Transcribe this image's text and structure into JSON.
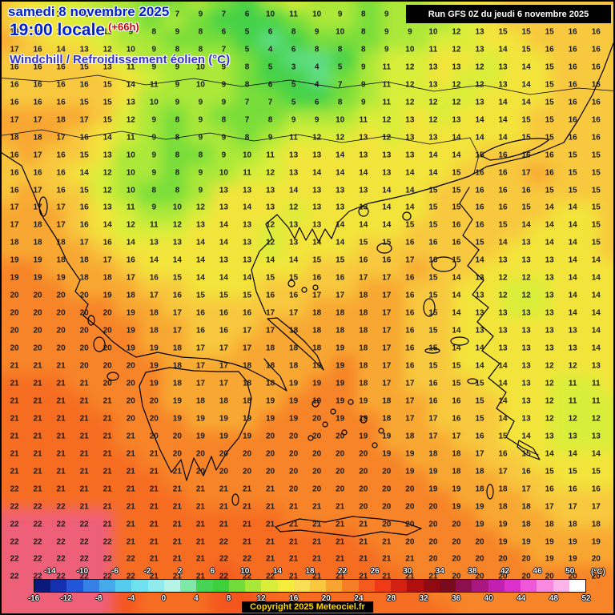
{
  "header": {
    "date": "samedi 8 novembre 2025",
    "time": "19:00 locale",
    "offset": "(+66h)",
    "title": "Windchill / Refroidissement éolien (°C)",
    "run_info": "Run GFS 0Z du jeudi 6 novembre 2025"
  },
  "footer": {
    "copyright": "Copyright 2025 Meteociel.fr"
  },
  "legend": {
    "unit": "(°C)",
    "range": [
      -16,
      52
    ],
    "top_labels": [
      -14,
      -10,
      -6,
      -2,
      2,
      6,
      10,
      14,
      18,
      22,
      26,
      30,
      34,
      38,
      42,
      46,
      50
    ],
    "bottom_labels": [
      -16,
      -12,
      -8,
      -4,
      0,
      4,
      8,
      12,
      16,
      20,
      24,
      28,
      32,
      36,
      40,
      44,
      48,
      52
    ],
    "colors": [
      "#0b1a7a",
      "#1430b0",
      "#2256d8",
      "#3380e6",
      "#44aaec",
      "#55ccee",
      "#6fe0ee",
      "#90ecec",
      "#b5f4e6",
      "#7fe8a8",
      "#47d455",
      "#3dcf3c",
      "#72dd3a",
      "#a8e839",
      "#d9ee3a",
      "#f5ec3c",
      "#f8df55",
      "#f9c83e",
      "#f8a430",
      "#f67f26",
      "#f45a1e",
      "#ee3a16",
      "#d42012",
      "#b10f0f",
      "#8f0a12",
      "#7a0a1e",
      "#8c1050",
      "#a81880",
      "#c220b0",
      "#dc30cc",
      "#ee58d8",
      "#f888e0",
      "#fbb4ea",
      "#ffffff"
    ]
  },
  "map": {
    "number_color": "#1c1c1c",
    "field_palette": [
      [
        2,
        "#86e8c0"
      ],
      [
        4,
        "#60dd86"
      ],
      [
        6,
        "#44d148"
      ],
      [
        8,
        "#78dd3a"
      ],
      [
        10,
        "#abe839"
      ],
      [
        12,
        "#d9ee3a"
      ],
      [
        14,
        "#f3e43b"
      ],
      [
        16,
        "#f8c83e"
      ],
      [
        18,
        "#f8a832"
      ],
      [
        20,
        "#f78428"
      ],
      [
        21,
        "#f66d22"
      ],
      [
        99,
        "#f4561e"
      ]
    ],
    "pink_region": {
      "row_start": 27,
      "col_start": 0,
      "col_end": 4,
      "color": "#ee5f78"
    },
    "rows": [
      "15 13 12 11 10 9 8 7 9 7 6 10 11 10 9 8 9 10 12 13 14 15 15 15 15 16",
      "16 14 13 12 11 9 8 9 8 6 5 6 8 9 10 8 9 9 10 12 13 15 15 15 16 16",
      "17 16 14 13 12 10 9 8 8 7 5 4 6 8 8 8 9 10 11 12 13 14 15 16 16 16",
      "16 16 16 15 13 11 9 9 10 9 8 5 3 4 5 9 11 12 13 13 12 13 14 15 16 16",
      "16 16 16 16 15 14 11 9 10 9 8 6 5 4 7 9 11 12 13 12 12 13 14 15 16 16",
      "16 16 16 15 15 13 10 9 9 9 7 7 5 6 8 9 11 12 12 12 13 14 14 15 16 16",
      "17 17 18 17 15 12 9 8 9 8 7 8 9 9 10 11 12 13 12 13 14 14 15 15 16 16",
      "18 18 17 16 14 11 9 8 9 9 8 9 11 12 12 13 12 13 13 14 14 14 15 15 16 16",
      "16 17 16 15 13 10 9 8 8 9 10 11 13 13 14 13 13 13 14 14 15 16 16 16 15 15",
      "16 16 16 14 12 10 9 8 9 10 11 12 13 14 14 14 13 14 14 15 16 16 17 16 15 15",
      "16 17 16 15 12 10 8 8 9 13 13 13 14 13 13 13 14 14 15 15 16 16 16 15 15 15",
      "17 17 17 16 13 11 9 10 12 13 14 13 12 13 13 13 14 14 15 15 16 16 15 14 14 15",
      "17 18 17 16 14 12 11 12 13 14 13 12 13 13 14 14 14 15 15 16 16 15 14 14 14 15",
      "18 18 18 17 16 14 13 13 14 14 13 12 13 14 14 15 15 16 16 16 15 14 13 14 14 15",
      "19 19 18 18 17 16 14 14 14 13 13 14 14 15 15 16 16 17 16 15 14 13 13 13 14 14",
      "19 19 19 18 18 17 16 15 14 14 14 15 15 16 16 17 17 16 15 14 13 12 12 13 14 14",
      "20 20 20 20 19 18 17 16 15 15 15 16 16 17 17 18 17 16 15 14 13 12 12 13 14 14",
      "20 20 20 20 20 19 18 17 16 16 16 17 17 18 18 18 17 16 15 14 13 13 13 13 14 14",
      "20 20 20 20 20 19 18 17 16 16 17 17 18 18 18 18 17 16 15 14 13 13 13 13 13 14",
      "20 20 20 20 20 19 19 18 17 17 17 18 18 18 19 18 17 16 15 14 14 13 13 13 13 14",
      "21 21 21 20 20 20 19 18 17 17 18 18 18 19 19 18 17 16 15 15 14 14 13 12 12 13",
      "21 21 21 21 20 20 19 18 17 17 18 18 19 19 19 18 17 17 16 15 15 14 13 12 11 11",
      "21 21 21 21 21 20 20 19 18 18 18 19 19 19 19 19 18 17 16 16 15 14 13 12 11 11",
      "21 21 21 21 21 20 20 19 19 19 19 19 19 20 19 19 18 17 17 16 15 14 13 12 12 12",
      "21 21 21 21 21 21 20 20 19 19 19 20 20 20 20 19 19 18 17 17 16 15 14 13 13 13",
      "21 21 21 21 21 21 21 20 20 20 20 20 20 20 20 20 19 19 18 18 17 16 15 14 14 14",
      "21 21 21 21 21 21 21 21 20 20 20 20 20 20 20 20 20 19 19 18 18 17 16 15 15 15",
      "22 21 21 21 21 21 21 21 21 21 21 21 20 20 20 20 20 20 19 19 18 18 17 16 16 16",
      "22 22 22 21 21 21 21 21 21 21 21 21 21 21 21 20 20 20 20 19 19 18 18 17 17 17",
      "22 22 22 22 21 21 21 21 21 21 21 21 21 21 21 21 20 20 20 20 19 19 18 18 18 18",
      "22 22 22 22 22 21 21 21 21 22 21 21 21 21 21 21 21 20 20 20 20 19 19 19 19 19",
      "22 22 22 22 22 22 21 21 21 22 22 21 21 21 21 21 21 21 20 20 20 20 20 19 19 20",
      "22 22 22 22 22 22 21 21 21 22 22 22 21 21 21 21 21 21 21 20 20 20 20 20 20 20"
    ]
  }
}
